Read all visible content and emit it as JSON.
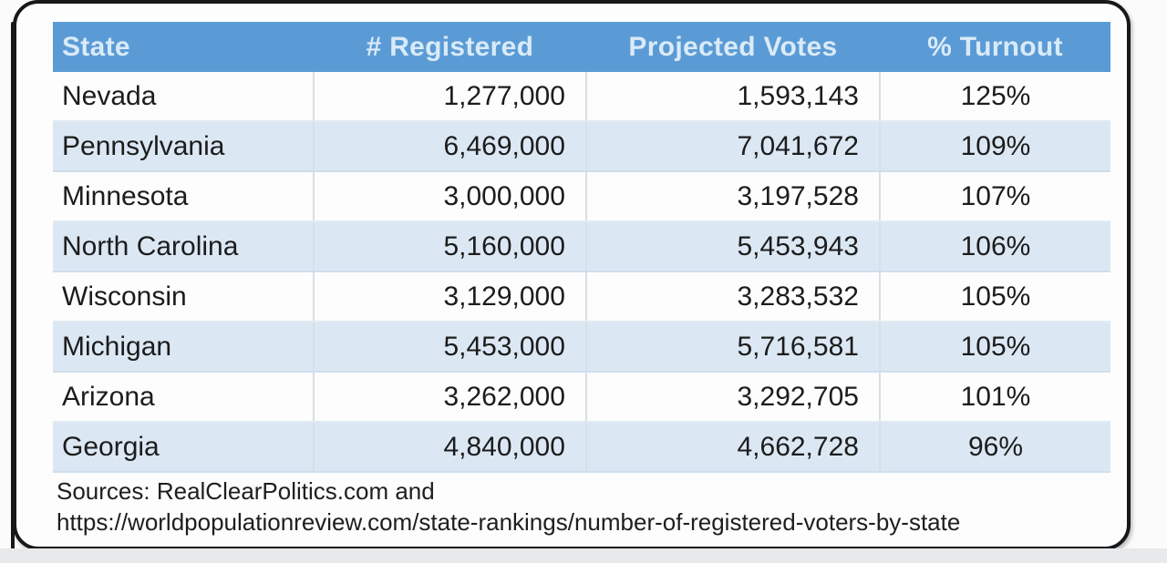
{
  "chart_data": {
    "type": "table",
    "columns": [
      "State",
      "# Registered",
      "Projected Votes",
      "% Turnout"
    ],
    "rows": [
      [
        "Nevada",
        "1,277,000",
        "1,593,143",
        "125%"
      ],
      [
        "Pennsylvania",
        "6,469,000",
        "7,041,672",
        "109%"
      ],
      [
        "Minnesota",
        "3,000,000",
        "3,197,528",
        "107%"
      ],
      [
        "North Carolina",
        "5,160,000",
        "5,453,943",
        "106%"
      ],
      [
        "Wisconsin",
        "3,129,000",
        "3,283,532",
        "105%"
      ],
      [
        "Michigan",
        "5,453,000",
        "5,716,581",
        "105%"
      ],
      [
        "Arizona",
        "3,262,000",
        "3,292,705",
        "101%"
      ],
      [
        "Georgia",
        "4,840,000",
        "4,662,728",
        "96%"
      ]
    ],
    "source_lines": [
      "Sources: RealClearPolitics.com and",
      "https://worldpopulationreview.com/state-rankings/number-of-registered-voters-by-state"
    ],
    "layout_hints": {
      "header_position": "top",
      "striped_rows": true,
      "number_alignment": "right",
      "turnout_alignment": "center"
    }
  },
  "colors": {
    "header_bg": "#5B9BD5",
    "header_text": "#D9EAF8",
    "stripe_row_bg": "#DBE8F4",
    "white_row_bg": "#FDFDFD",
    "body_text": "#1C1C1C",
    "card_border": "#17181A",
    "bottom_strip": "#E7E9EB"
  }
}
